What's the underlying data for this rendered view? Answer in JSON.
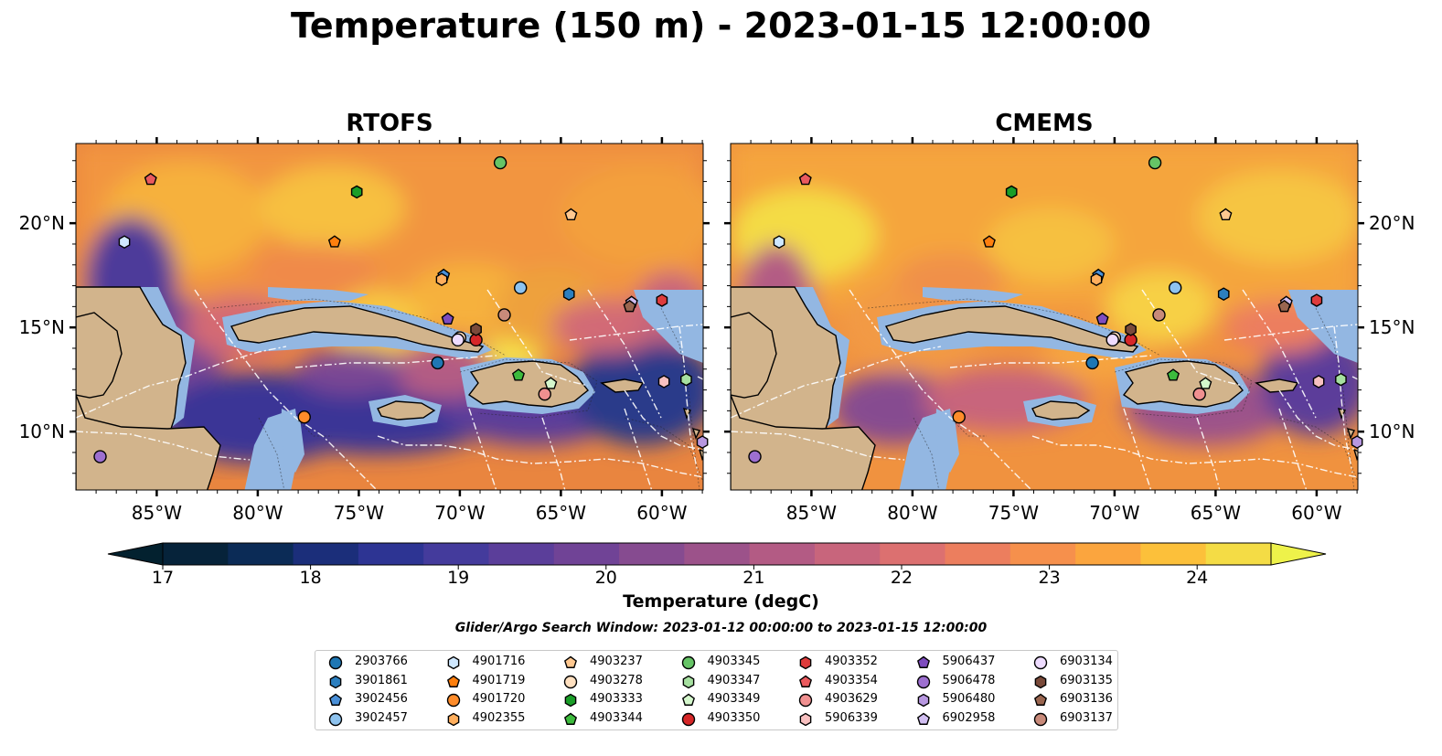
{
  "title": "Temperature (150 m) - 2023-01-15 12:00:00",
  "panels": [
    {
      "title": "RTOFS"
    },
    {
      "title": "CMEMS"
    }
  ],
  "lat_labels": [
    "20°N",
    "15°N",
    "10°N"
  ],
  "lon_labels": [
    "85°W",
    "80°W",
    "75°W",
    "70°W",
    "65°W",
    "60°W"
  ],
  "colorbar": {
    "label": "Temperature (degC)",
    "ticks": [
      "17",
      "18",
      "19",
      "20",
      "21",
      "22",
      "23",
      "24"
    ],
    "min": 17,
    "max": 24.5,
    "step": 0.5,
    "colors": [
      "#06233a",
      "#0b2b56",
      "#1b2e7a",
      "#2d3493",
      "#443b9c",
      "#5b3e9a",
      "#704396",
      "#864b90",
      "#9c528a",
      "#b35b84",
      "#c8657c",
      "#dc7070",
      "#ec7e5e",
      "#f6904c",
      "#fba53e",
      "#fcc03a",
      "#f4dc45"
    ],
    "under_color": "#03212f",
    "over_color": "#eef24a"
  },
  "search_window": "Glider/Argo Search Window: 2023-01-12 00:00:00 to 2023-01-15 12:00:00",
  "land_color": "#d2b48c",
  "shelf_color": "#93b7e2",
  "deep_color": "#06253a",
  "legend": {
    "items": [
      {
        "id": "2903766",
        "shape": "circle",
        "color": "#1f77b4"
      },
      {
        "id": "3901861",
        "shape": "hexagon",
        "color": "#2c7fbf"
      },
      {
        "id": "3902456",
        "shape": "pentagon",
        "color": "#4a90d9"
      },
      {
        "id": "3902457",
        "shape": "circle",
        "color": "#8ec3ef"
      },
      {
        "id": "4901716",
        "shape": "hexagon",
        "color": "#cfe8ff"
      },
      {
        "id": "4901719",
        "shape": "pentagon",
        "color": "#ff7f0e"
      },
      {
        "id": "4901720",
        "shape": "circle",
        "color": "#ff8c2a"
      },
      {
        "id": "4902355",
        "shape": "hexagon",
        "color": "#ffae5c"
      },
      {
        "id": "4903237",
        "shape": "pentagon",
        "color": "#ffc890"
      },
      {
        "id": "4903278",
        "shape": "circle",
        "color": "#ffe0c0"
      },
      {
        "id": "4903333",
        "shape": "hexagon",
        "color": "#1a9e28"
      },
      {
        "id": "4903344",
        "shape": "pentagon",
        "color": "#3dbb3d"
      },
      {
        "id": "4903345",
        "shape": "circle",
        "color": "#66c466"
      },
      {
        "id": "4903347",
        "shape": "hexagon",
        "color": "#a6e0a0"
      },
      {
        "id": "4903349",
        "shape": "pentagon",
        "color": "#d4f7cc"
      },
      {
        "id": "4903350",
        "shape": "circle",
        "color": "#d62728"
      },
      {
        "id": "4903352",
        "shape": "hexagon",
        "color": "#de3c3c"
      },
      {
        "id": "4903354",
        "shape": "pentagon",
        "color": "#ea5a5e"
      },
      {
        "id": "4903629",
        "shape": "circle",
        "color": "#f09090"
      },
      {
        "id": "5906339",
        "shape": "hexagon",
        "color": "#f8c0c0"
      },
      {
        "id": "5906437",
        "shape": "pentagon",
        "color": "#7e4cbf"
      },
      {
        "id": "5906478",
        "shape": "circle",
        "color": "#9d6fd0"
      },
      {
        "id": "5906480",
        "shape": "hexagon",
        "color": "#b797e0"
      },
      {
        "id": "6902958",
        "shape": "pentagon",
        "color": "#d2bff2"
      },
      {
        "id": "6903134",
        "shape": "circle",
        "color": "#eedcff"
      },
      {
        "id": "6903135",
        "shape": "hexagon",
        "color": "#7a4a3a"
      },
      {
        "id": "6903136",
        "shape": "pentagon",
        "color": "#9a6650"
      },
      {
        "id": "6903137",
        "shape": "circle",
        "color": "#c88a7a"
      }
    ]
  },
  "floats": [
    {
      "id": "2903766",
      "lon": -71.1,
      "lat": 13.3
    },
    {
      "id": "3901861",
      "lon": -64.6,
      "lat": 16.6
    },
    {
      "id": "3902456",
      "lon": -70.8,
      "lat": 17.5
    },
    {
      "id": "3902457",
      "lon": -67.0,
      "lat": 16.9
    },
    {
      "id": "4901716",
      "lon": -86.6,
      "lat": 19.1
    },
    {
      "id": "4901719",
      "lon": -76.2,
      "lat": 19.1
    },
    {
      "id": "4901720",
      "lon": -77.7,
      "lat": 10.7
    },
    {
      "id": "4902355",
      "lon": -70.9,
      "lat": 17.3
    },
    {
      "id": "4903237",
      "lon": -64.5,
      "lat": 20.4
    },
    {
      "id": "4903278",
      "lon": -70.0,
      "lat": 14.5
    },
    {
      "id": "4903333",
      "lon": -75.1,
      "lat": 21.5
    },
    {
      "id": "4903344",
      "lon": -67.1,
      "lat": 12.7
    },
    {
      "id": "4903345",
      "lon": -68.0,
      "lat": 22.9
    },
    {
      "id": "4903347",
      "lon": -58.8,
      "lat": 12.5
    },
    {
      "id": "4903349",
      "lon": -65.5,
      "lat": 12.3
    },
    {
      "id": "4903350",
      "lon": -69.2,
      "lat": 14.4
    },
    {
      "id": "4903352",
      "lon": -60.0,
      "lat": 16.3
    },
    {
      "id": "4903354",
      "lon": -85.3,
      "lat": 22.1
    },
    {
      "id": "4903629",
      "lon": -65.8,
      "lat": 11.8
    },
    {
      "id": "5906339",
      "lon": -59.9,
      "lat": 12.4
    },
    {
      "id": "5906437",
      "lon": -70.6,
      "lat": 15.4
    },
    {
      "id": "5906478",
      "lon": -87.8,
      "lat": 8.8
    },
    {
      "id": "5906480",
      "lon": -58.0,
      "lat": 9.5
    },
    {
      "id": "6902958",
      "lon": -61.5,
      "lat": 16.2
    },
    {
      "id": "6903134",
      "lon": -70.1,
      "lat": 14.4
    },
    {
      "id": "6903135",
      "lon": -69.2,
      "lat": 14.9
    },
    {
      "id": "6903136",
      "lon": -61.6,
      "lat": 16.0
    },
    {
      "id": "6903137",
      "lon": -67.8,
      "lat": 15.6
    }
  ]
}
